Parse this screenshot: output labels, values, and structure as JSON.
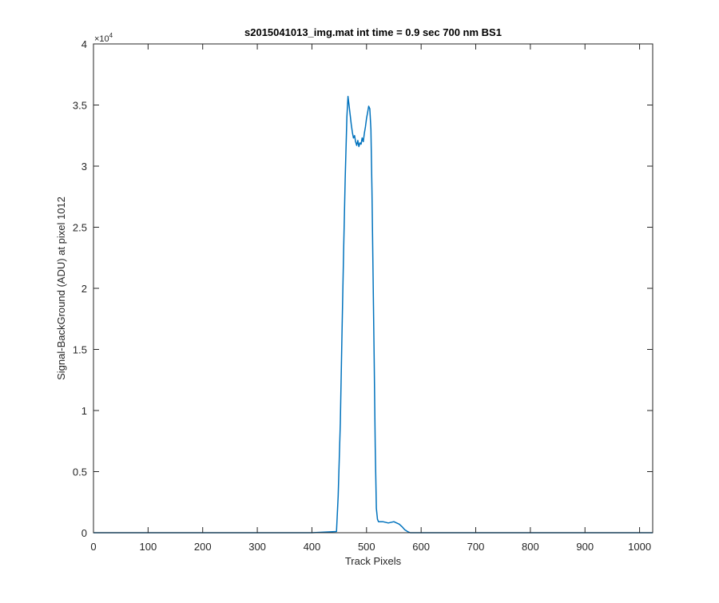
{
  "chart_data": {
    "type": "line",
    "title": "s2015041013_img.mat int time = 0.9 sec  700 nm BS1",
    "xlabel": "Track Pixels",
    "ylabel": "Signal-BackGround (ADU) at pixel 1012",
    "xlim": [
      0,
      1024
    ],
    "ylim": [
      0,
      40000
    ],
    "y_multiplier_label": "×10",
    "y_multiplier_exponent": "4",
    "x_ticks": [
      0,
      100,
      200,
      300,
      400,
      500,
      600,
      700,
      800,
      900,
      1000
    ],
    "x_tick_labels": [
      "0",
      "100",
      "200",
      "300",
      "400",
      "500",
      "600",
      "700",
      "800",
      "900",
      "1000"
    ],
    "y_ticks": [
      0,
      5000,
      10000,
      15000,
      20000,
      25000,
      30000,
      35000,
      40000
    ],
    "y_tick_labels": [
      "0",
      "0.5",
      "1",
      "1.5",
      "2",
      "2.5",
      "3",
      "3.5",
      "4"
    ],
    "grid": false,
    "line_color": "#0072bd",
    "series": [
      {
        "x": [
          0,
          100,
          200,
          300,
          400,
          445,
          448,
          452,
          455,
          458,
          461,
          464,
          466,
          468,
          470,
          472,
          474,
          476,
          478,
          480,
          482,
          484,
          486,
          488,
          490,
          492,
          494,
          496,
          498,
          500,
          502,
          504,
          506,
          508,
          510,
          512,
          514,
          516,
          518,
          520,
          522,
          530,
          540,
          550,
          560,
          565,
          570,
          575,
          580,
          600,
          700,
          800,
          900,
          1024
        ],
        "y": [
          0,
          0,
          0,
          0,
          0,
          100,
          3000,
          9000,
          16000,
          23000,
          29000,
          34000,
          35700,
          35000,
          34200,
          33400,
          32800,
          32300,
          32500,
          32000,
          31700,
          32100,
          31600,
          31900,
          31800,
          32300,
          32000,
          32700,
          33200,
          33900,
          34400,
          34900,
          34700,
          33000,
          28000,
          21000,
          14000,
          7000,
          2000,
          1100,
          900,
          900,
          800,
          900,
          700,
          500,
          250,
          100,
          0,
          0,
          0,
          0,
          0,
          0
        ]
      }
    ]
  }
}
